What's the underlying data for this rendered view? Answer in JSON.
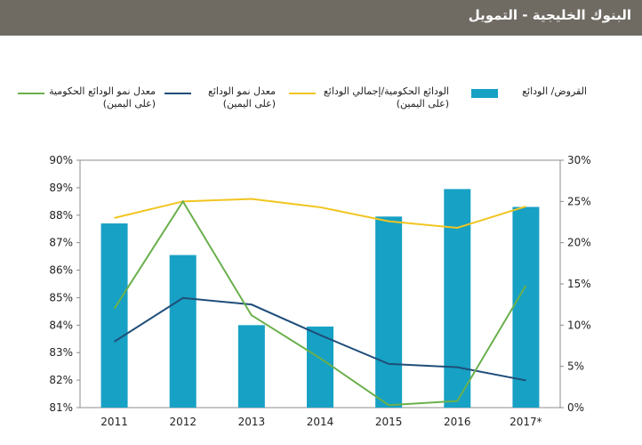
{
  "header": {
    "title": "البنوك الخليجية - التمويل"
  },
  "legend": [
    {
      "label_line1": "القروض/ الودائع",
      "label_line2": "",
      "series": "bars"
    },
    {
      "label_line1": "الودائع الحكومية/إجمالي الودائع",
      "label_line2": "(على اليمين)",
      "series": "gov_share"
    },
    {
      "label_line1": "معدل نمو الودائع",
      "label_line2": "(على اليمين)",
      "series": "deposit_growth"
    },
    {
      "label_line1": "معدل نمو الودائع الحكومية",
      "label_line2": "(على اليمين)",
      "series": "gov_growth"
    }
  ],
  "chart_data": {
    "type": "bar",
    "categories": [
      "2011",
      "2012",
      "2013",
      "2014",
      "2015",
      "2016",
      "2017*"
    ],
    "left_axis": {
      "ylim": [
        81,
        90
      ],
      "ticks": [
        "81%",
        "82%",
        "83%",
        "84%",
        "85%",
        "86%",
        "87%",
        "88%",
        "89%",
        "90%"
      ]
    },
    "right_axis": {
      "ylim": [
        0,
        30
      ],
      "ticks": [
        "0%",
        "5%",
        "10%",
        "15%",
        "20%",
        "25%",
        "30%"
      ]
    },
    "grid": false,
    "series": [
      {
        "name": "القروض/ الودائع",
        "kind": "bar",
        "axis": "left",
        "color": "#17a1c4",
        "values": [
          87.7,
          86.55,
          84.0,
          83.95,
          87.95,
          88.95,
          88.3
        ]
      },
      {
        "name": "الودائع الحكومية/إجمالي الودائع",
        "kind": "line",
        "axis": "right",
        "color": "#f2c521",
        "values": [
          23.0,
          25.0,
          25.3,
          24.3,
          22.6,
          21.8,
          24.4
        ]
      },
      {
        "name": "معدل نمو الودائع",
        "kind": "line",
        "axis": "right",
        "color": "#1f4e79",
        "values": [
          8.0,
          13.3,
          12.5,
          8.8,
          5.3,
          4.9,
          3.3
        ]
      },
      {
        "name": "معدل نمو الودائع الحكومية",
        "kind": "line",
        "axis": "right",
        "color": "#6ab04c",
        "values": [
          12.0,
          25.0,
          11.2,
          6.0,
          0.3,
          0.8,
          14.8
        ]
      }
    ]
  }
}
